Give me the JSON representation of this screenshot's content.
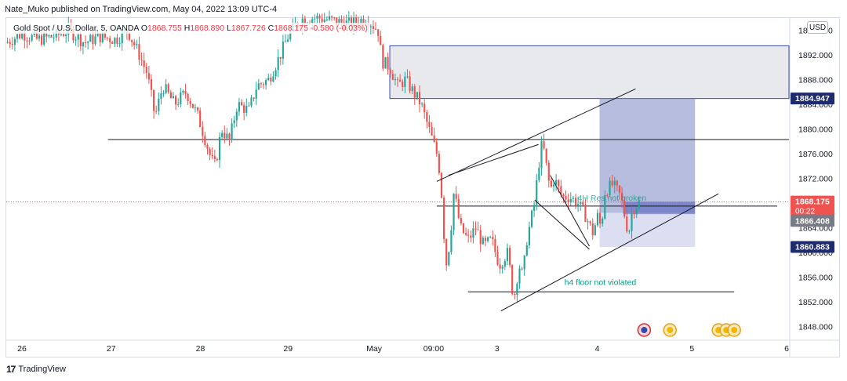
{
  "header": {
    "publisher_line": "Nate_Muko published on TradingView.com, May 04, 2022 13:09 UTC-4"
  },
  "legend": {
    "symbol": "Gold Spot / U.S. Dollar, 5, OANDA",
    "open_label": "O",
    "open": "1868.755",
    "high_label": "H",
    "high": "1868.890",
    "low_label": "L",
    "low": "1867.726",
    "close_label": "C",
    "close": "1868.175",
    "change": "-0.580 (-0.03%)"
  },
  "currency_badge": "USD",
  "footer": {
    "brand": "TradingView",
    "logo_mark": "17"
  },
  "colors": {
    "up": "#26a69a",
    "down": "#ef5350",
    "supply_zone": "#d1d4dc",
    "target_zone": "#7b86c4",
    "stop_zone": "#c5cae9",
    "price_line": "#ef5350",
    "axis_text": "#131722",
    "annotation_text": "#089981"
  },
  "chart_data": {
    "type": "candlestick",
    "instrument": "Gold Spot / U.S. Dollar",
    "timeframe": "5",
    "ylim": [
      1846,
      1898
    ],
    "y_ticks": [
      "1896.000",
      "1892.000",
      "1888.000",
      "1884.000",
      "1880.000",
      "1876.000",
      "1872.000",
      "1868.000",
      "1864.000",
      "1860.000",
      "1856.000",
      "1852.000",
      "1848.000"
    ],
    "x_ticks": [
      {
        "label": "26",
        "pos": 0.02
      },
      {
        "label": "27",
        "pos": 0.134
      },
      {
        "label": "28",
        "pos": 0.248
      },
      {
        "label": "29",
        "pos": 0.36
      },
      {
        "label": "May",
        "pos": 0.47
      },
      {
        "label": "09:00",
        "pos": 0.546
      },
      {
        "label": "3",
        "pos": 0.627
      },
      {
        "label": "4",
        "pos": 0.755
      },
      {
        "label": "5",
        "pos": 0.876
      },
      {
        "label": "6",
        "pos": 0.997
      }
    ],
    "price_path": [
      [
        0.0,
        1894
      ],
      [
        0.02,
        1895.5
      ],
      [
        0.04,
        1894.5
      ],
      [
        0.06,
        1895
      ],
      [
        0.08,
        1896
      ],
      [
        0.1,
        1894
      ],
      [
        0.12,
        1895
      ],
      [
        0.14,
        1894.5
      ],
      [
        0.155,
        1896
      ],
      [
        0.17,
        1892
      ],
      [
        0.18,
        1889
      ],
      [
        0.19,
        1882
      ],
      [
        0.2,
        1887
      ],
      [
        0.215,
        1884
      ],
      [
        0.23,
        1886
      ],
      [
        0.245,
        1882
      ],
      [
        0.255,
        1878
      ],
      [
        0.262,
        1875
      ],
      [
        0.267,
        1874
      ],
      [
        0.275,
        1880
      ],
      [
        0.285,
        1878
      ],
      [
        0.295,
        1884
      ],
      [
        0.31,
        1883
      ],
      [
        0.32,
        1887
      ],
      [
        0.335,
        1888
      ],
      [
        0.35,
        1892
      ],
      [
        0.36,
        1895
      ],
      [
        0.37,
        1897
      ],
      [
        0.38,
        1898
      ],
      [
        0.4,
        1898
      ],
      [
        0.42,
        1897.5
      ],
      [
        0.44,
        1897
      ],
      [
        0.46,
        1898
      ],
      [
        0.475,
        1896
      ],
      [
        0.48,
        1891
      ],
      [
        0.49,
        1890
      ],
      [
        0.5,
        1887
      ],
      [
        0.51,
        1888
      ],
      [
        0.52,
        1886
      ],
      [
        0.53,
        1884
      ],
      [
        0.535,
        1882
      ],
      [
        0.54,
        1880
      ],
      [
        0.55,
        1876
      ],
      [
        0.555,
        1872
      ],
      [
        0.558,
        1865
      ],
      [
        0.562,
        1858
      ],
      [
        0.567,
        1862
      ],
      [
        0.572,
        1870
      ],
      [
        0.58,
        1864
      ],
      [
        0.59,
        1862
      ],
      [
        0.6,
        1864
      ],
      [
        0.61,
        1861
      ],
      [
        0.62,
        1862
      ],
      [
        0.63,
        1858
      ],
      [
        0.64,
        1860
      ],
      [
        0.645,
        1856
      ],
      [
        0.648,
        1852
      ],
      [
        0.655,
        1858
      ],
      [
        0.66,
        1856
      ],
      [
        0.665,
        1862
      ],
      [
        0.675,
        1868
      ],
      [
        0.68,
        1874
      ],
      [
        0.685,
        1878
      ],
      [
        0.69,
        1874
      ],
      [
        0.695,
        1870
      ],
      [
        0.7,
        1872
      ],
      [
        0.71,
        1869
      ],
      [
        0.72,
        1869
      ],
      [
        0.73,
        1868
      ],
      [
        0.74,
        1866
      ],
      [
        0.75,
        1863
      ],
      [
        0.755,
        1866
      ],
      [
        0.76,
        1864
      ],
      [
        0.765,
        1870
      ],
      [
        0.775,
        1871
      ],
      [
        0.785,
        1869
      ],
      [
        0.79,
        1866
      ],
      [
        0.795,
        1863
      ],
      [
        0.8,
        1867
      ],
      [
        0.81,
        1868.2
      ]
    ],
    "supply_zone": {
      "x0": 0.49,
      "x1": 1.0,
      "y_top": 1893.5,
      "y_bottom": 1884.95
    },
    "long_position": {
      "x0": 0.758,
      "x1": 0.88,
      "entry": 1866.4,
      "target": 1884.947,
      "stop": 1860.883
    },
    "trend_lines": [
      {
        "name": "channel-upper",
        "x0": 0.55,
        "y0": 1871.5,
        "x1": 0.804,
        "y1": 1886.5
      },
      {
        "name": "channel-lower",
        "x0": 0.632,
        "y0": 1850.5,
        "x1": 0.91,
        "y1": 1869.5
      },
      {
        "name": "falling-wedge-upper",
        "x0": 0.565,
        "y0": 1872.5,
        "x1": 0.68,
        "y1": 1877.5
      },
      {
        "name": "falling-wedge-lower",
        "x0": 0.695,
        "y0": 1872.5,
        "x1": 0.745,
        "y1": 1861
      },
      {
        "name": "diagonal-short",
        "x0": 0.675,
        "y0": 1868.5,
        "x1": 0.745,
        "y1": 1860.5
      }
    ],
    "horizontal_lines": [
      {
        "name": "resistance-1878",
        "x0": 0.13,
        "x1": 1.0,
        "y": 1878.3
      },
      {
        "name": "h4-resistance",
        "x0": 0.55,
        "x1": 0.985,
        "y": 1867.5
      },
      {
        "name": "h4-floor",
        "x0": 0.59,
        "x1": 0.93,
        "y": 1853.6
      }
    ],
    "current_price_line": 1868.175,
    "annotations": [
      {
        "text": "4H Res not broken",
        "x": 0.73,
        "y": 1868.4
      },
      {
        "text": "h4 floor not violated",
        "x": 0.713,
        "y": 1854.7
      }
    ],
    "price_labels": [
      {
        "name": "current-price",
        "value": "1868.175",
        "sub": "00:22",
        "y": 1868.175,
        "bg": "#ef5350",
        "fg": "#ffffff"
      },
      {
        "name": "entry-price",
        "value": "1866.408",
        "y": 1865.1,
        "bg": "#787b86",
        "fg": "#ffffff"
      },
      {
        "name": "target-price",
        "value": "1884.947",
        "y": 1884.947,
        "bg": "#1e2b6e",
        "fg": "#ffffff"
      },
      {
        "name": "stop-price",
        "value": "1860.883",
        "y": 1860.883,
        "bg": "#1e2b6e",
        "fg": "#ffffff"
      }
    ],
    "events": [
      {
        "name": "us-flag-event-1",
        "x": 0.815
      },
      {
        "name": "gold-event-1",
        "x": 0.848
      },
      {
        "name": "gold-event-2",
        "x": 0.91
      },
      {
        "name": "gold-event-3",
        "x": 0.92
      },
      {
        "name": "gold-event-4",
        "x": 0.93
      }
    ]
  }
}
